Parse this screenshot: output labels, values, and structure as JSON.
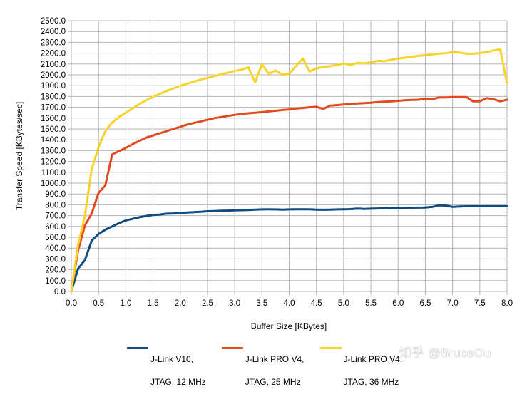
{
  "chart_data": {
    "type": "line",
    "title": "",
    "xlabel": "Buffer Size [KBytes]",
    "ylabel": "Transfer Speed [KBytes/sec]",
    "xlim": [
      0,
      8.0
    ],
    "ylim": [
      0,
      2500
    ],
    "grid": true,
    "legend_position": "bottom",
    "x_ticks": [
      "0.0",
      "0.5",
      "1.0",
      "1.5",
      "2.0",
      "2.5",
      "3.0",
      "3.5",
      "4.0",
      "4.5",
      "5.0",
      "5.5",
      "6.0",
      "6.5",
      "7.0",
      "7.5",
      "8.0"
    ],
    "y_ticks": [
      "0.0",
      "100.0",
      "200.0",
      "300.0",
      "400.0",
      "500.0",
      "600.0",
      "700.0",
      "800.0",
      "900.0",
      "1000.0",
      "1100.0",
      "1200.0",
      "1300.0",
      "1400.0",
      "1500.0",
      "1600.0",
      "1700.0",
      "1800.0",
      "1900.0",
      "2000.0",
      "2100.0",
      "2200.0",
      "2300.0",
      "2400.0",
      "2500.0"
    ],
    "x": [
      0,
      0.125,
      0.25,
      0.375,
      0.5,
      0.625,
      0.75,
      0.875,
      1.0,
      1.125,
      1.25,
      1.375,
      1.5,
      1.625,
      1.75,
      1.875,
      2.0,
      2.125,
      2.25,
      2.375,
      2.5,
      2.625,
      2.75,
      2.875,
      3.0,
      3.125,
      3.25,
      3.375,
      3.5,
      3.625,
      3.75,
      3.875,
      4.0,
      4.125,
      4.25,
      4.375,
      4.5,
      4.625,
      4.75,
      4.875,
      5.0,
      5.125,
      5.25,
      5.375,
      5.5,
      5.625,
      5.75,
      5.875,
      6.0,
      6.125,
      6.25,
      6.375,
      6.5,
      6.625,
      6.75,
      6.875,
      7.0,
      7.125,
      7.25,
      7.375,
      7.5,
      7.625,
      7.75,
      7.875,
      8.0
    ],
    "series": [
      {
        "name": "J-Link V10, JTAG, 12 MHz",
        "color": "#0e4c7f",
        "values": [
          0,
          210,
          290,
          470,
          530,
          570,
          600,
          630,
          655,
          670,
          685,
          697,
          705,
          710,
          718,
          720,
          725,
          728,
          732,
          735,
          740,
          742,
          745,
          746,
          748,
          750,
          752,
          755,
          757,
          758,
          757,
          755,
          757,
          758,
          758,
          758,
          755,
          754,
          755,
          757,
          758,
          760,
          765,
          762,
          764,
          766,
          768,
          770,
          772,
          772,
          773,
          774,
          775,
          780,
          795,
          793,
          780,
          785,
          786,
          786,
          786,
          786,
          786,
          786,
          786
        ]
      },
      {
        "name": "J-Link PRO V4, JTAG, 25 MHz",
        "color": "#e34a1f",
        "values": [
          0,
          380,
          610,
          720,
          910,
          980,
          1265,
          1295,
          1325,
          1360,
          1390,
          1420,
          1440,
          1460,
          1480,
          1500,
          1520,
          1540,
          1555,
          1570,
          1585,
          1600,
          1610,
          1620,
          1630,
          1638,
          1645,
          1650,
          1655,
          1662,
          1668,
          1675,
          1680,
          1688,
          1694,
          1700,
          1705,
          1685,
          1715,
          1720,
          1725,
          1730,
          1735,
          1738,
          1742,
          1748,
          1752,
          1755,
          1760,
          1765,
          1768,
          1770,
          1780,
          1775,
          1790,
          1790,
          1795,
          1795,
          1795,
          1755,
          1755,
          1785,
          1775,
          1755,
          1770
        ]
      },
      {
        "name": "J-Link PRO V4, JTAG, 36 MHz",
        "color": "#f7d32a",
        "values": [
          0,
          430,
          700,
          1130,
          1330,
          1480,
          1560,
          1610,
          1650,
          1690,
          1730,
          1765,
          1795,
          1825,
          1850,
          1875,
          1898,
          1918,
          1938,
          1955,
          1972,
          1988,
          2005,
          2020,
          2035,
          2048,
          2070,
          1930,
          2100,
          2010,
          2040,
          2000,
          2010,
          2080,
          2150,
          2030,
          2060,
          2070,
          2080,
          2090,
          2105,
          2090,
          2110,
          2105,
          2115,
          2130,
          2125,
          2140,
          2150,
          2158,
          2165,
          2175,
          2180,
          2190,
          2195,
          2200,
          2210,
          2205,
          2195,
          2195,
          2200,
          2210,
          2225,
          2235,
          1920
        ]
      }
    ]
  },
  "legend": [
    {
      "line1": "J-Link V10,",
      "line2": "JTAG, 12 MHz",
      "color": "#0e4c7f"
    },
    {
      "line1": "J-Link PRO V4,",
      "line2": "JTAG, 25 MHz",
      "color": "#e34a1f"
    },
    {
      "line1": "J-Link PRO V4,",
      "line2": "JTAG, 36 MHz",
      "color": "#f7d32a"
    }
  ],
  "watermark": "知乎 @BruceOu",
  "colors": {
    "grid": "#b3b3b3",
    "axis": "#b3b3b3"
  }
}
